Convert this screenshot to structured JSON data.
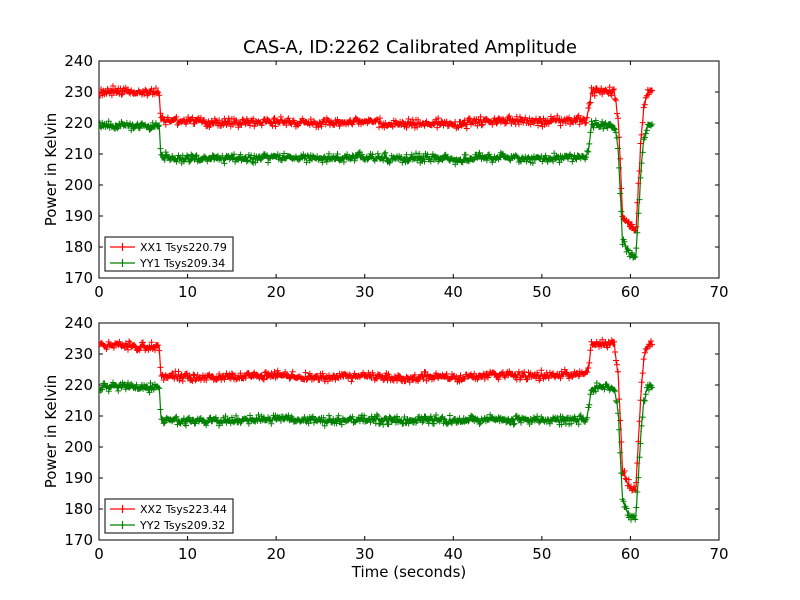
{
  "title": "CAS-A, ID:2262 Calibrated Amplitude",
  "colors": {
    "xx": "#ff0000",
    "yy": "#008000",
    "axis": "#000000",
    "background": "#ffffff"
  },
  "chart_data": [
    {
      "type": "line",
      "title": "CAS-A, ID:2262 Calibrated Amplitude",
      "xlabel": "",
      "ylabel": "Power in Kelvin",
      "xlim": [
        0,
        70
      ],
      "ylim": [
        170,
        240
      ],
      "xticks": [
        0,
        10,
        20,
        30,
        40,
        50,
        60,
        70
      ],
      "yticks": [
        170,
        180,
        190,
        200,
        210,
        220,
        230,
        240
      ],
      "legend_position": "lower-left",
      "series": [
        {
          "name": "XX1 Tsys220.79",
          "color": "#ff0000",
          "marker": "+",
          "x": [
            0,
            2,
            4,
            6,
            6.8,
            7.0,
            10,
            15,
            20,
            25,
            30,
            34,
            38,
            41,
            42,
            45,
            50,
            55,
            55.3,
            55.6,
            57,
            58.2,
            58.6,
            58.9,
            59.1,
            59.5,
            60.0,
            60.6,
            60.9,
            61.2,
            61.5,
            61.8,
            62.2,
            62.5
          ],
          "y": [
            230,
            230.5,
            230,
            230,
            230,
            221,
            220.5,
            220,
            220.5,
            220,
            220.5,
            219.5,
            220,
            219,
            220.5,
            221,
            220.5,
            221,
            224,
            230,
            230.5,
            230,
            222,
            205,
            191,
            188,
            186,
            185,
            200,
            215,
            225,
            229,
            230.5,
            230
          ]
        },
        {
          "name": "YY1 Tsys209.34",
          "color": "#008000",
          "marker": "+",
          "x": [
            0,
            2,
            4,
            6,
            6.8,
            7.0,
            10,
            15,
            20,
            25,
            30,
            34,
            38,
            41,
            42,
            45,
            50,
            55,
            55.3,
            55.6,
            57,
            58.2,
            58.6,
            58.9,
            59.1,
            59.5,
            60.0,
            60.6,
            60.9,
            61.2,
            61.5,
            61.8,
            62.2,
            62.5
          ],
          "y": [
            219,
            219.5,
            219,
            219,
            219,
            209,
            208.5,
            208.5,
            209,
            208.5,
            209,
            208.5,
            209,
            208,
            208.5,
            209,
            208.5,
            209,
            212,
            219,
            219.5,
            219,
            212,
            195,
            182,
            180,
            178,
            177,
            190,
            205,
            214,
            218,
            220,
            219
          ]
        }
      ]
    },
    {
      "type": "line",
      "title": "",
      "xlabel": "Time (seconds)",
      "ylabel": "Power in Kelvin",
      "xlim": [
        0,
        70
      ],
      "ylim": [
        170,
        240
      ],
      "xticks": [
        0,
        10,
        20,
        30,
        40,
        50,
        60,
        70
      ],
      "yticks": [
        170,
        180,
        190,
        200,
        210,
        220,
        230,
        240
      ],
      "legend_position": "lower-left",
      "series": [
        {
          "name": "XX2 Tsys223.44",
          "color": "#ff0000",
          "marker": "+",
          "x": [
            0,
            2,
            4,
            6,
            6.8,
            7.0,
            10,
            15,
            20,
            25,
            30,
            34,
            38,
            41,
            42,
            45,
            50,
            55,
            55.3,
            55.6,
            57,
            58.2,
            58.6,
            58.9,
            59.1,
            59.5,
            60.0,
            60.6,
            60.9,
            61.2,
            61.5,
            61.8,
            62.2,
            62.5
          ],
          "y": [
            232.5,
            233,
            232.5,
            232.5,
            232.5,
            223,
            222.5,
            222.5,
            223,
            222.5,
            223,
            222,
            223,
            222,
            223,
            223.5,
            223,
            223.5,
            226,
            233,
            233.5,
            233,
            224,
            206,
            193,
            189,
            187,
            186,
            202,
            218,
            228,
            232,
            233.5,
            233
          ]
        },
        {
          "name": "YY2 Tsys209.32",
          "color": "#008000",
          "marker": "+",
          "x": [
            0,
            2,
            4,
            6,
            6.8,
            7.0,
            10,
            15,
            20,
            25,
            30,
            34,
            38,
            41,
            42,
            45,
            50,
            55,
            55.3,
            55.6,
            57,
            58.2,
            58.6,
            58.9,
            59.1,
            59.5,
            60.0,
            60.6,
            60.9,
            61.2,
            61.5,
            61.8,
            62.2,
            62.5
          ],
          "y": [
            219,
            219.5,
            219,
            219,
            219,
            209,
            208.5,
            208.5,
            209,
            208.5,
            209,
            208.5,
            209,
            208,
            208.5,
            209,
            208.5,
            209,
            212,
            219,
            219.5,
            219,
            212,
            195,
            183,
            180,
            178,
            177,
            190,
            205,
            214,
            218,
            220,
            219
          ]
        }
      ]
    }
  ]
}
